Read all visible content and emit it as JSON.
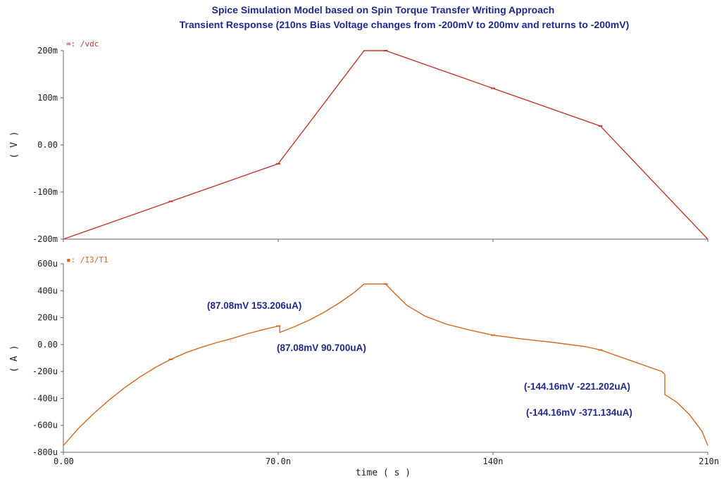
{
  "title": "Spice Simulation Model based on Spin Torque Transfer Writing Approach",
  "subtitle": "Transient Response (210ns Bias Voltage changes from -200mV to 200mv and returns to -200mV)",
  "colors": {
    "title": "#1f2a8c",
    "vdc": "#c0392b",
    "current": "#d2691e",
    "axis": "#555555"
  },
  "xaxis": {
    "label": "time ( s )",
    "ticks": [
      {
        "value": 0,
        "label": "0.00"
      },
      {
        "value": 70,
        "label": "70.0n"
      },
      {
        "value": 140,
        "label": "140n"
      },
      {
        "value": 210,
        "label": "210n"
      }
    ],
    "range": [
      0,
      210
    ]
  },
  "chart_data": [
    {
      "type": "line",
      "series": [
        {
          "name": "/vdc",
          "x": [
            0,
            35,
            70,
            98,
            105,
            140,
            175,
            210
          ],
          "y": [
            -200,
            -120,
            -40,
            200,
            200,
            120,
            40,
            -200
          ],
          "y_alt": null
        }
      ],
      "x_unit": "ns",
      "ylabel": "( V )",
      "ylim": [
        -200,
        200
      ],
      "yticks": [
        {
          "value": 200,
          "label": "200m"
        },
        {
          "value": 100,
          "label": "100m"
        },
        {
          "value": 0,
          "label": "0.00"
        },
        {
          "value": -100,
          "label": "-100m"
        },
        {
          "value": -200,
          "label": "-200m"
        }
      ],
      "series_label": "=: /vdc"
    },
    {
      "type": "line",
      "series": [
        {
          "name": "/I3/T1",
          "x": [
            0,
            5,
            10,
            15,
            20,
            25,
            30,
            35,
            40,
            45,
            50,
            55,
            60,
            65,
            70.5,
            70.5,
            75,
            80,
            85,
            90,
            95,
            98,
            105,
            108,
            112,
            118,
            125,
            132,
            140,
            150,
            160,
            170,
            175,
            180,
            185,
            190,
            195,
            196,
            196,
            200,
            204,
            208,
            210
          ],
          "y": [
            -750,
            -620,
            -510,
            -410,
            -320,
            -240,
            -170,
            -110,
            -60,
            -20,
            15,
            45,
            80,
            110,
            140,
            90,
            130,
            180,
            240,
            310,
            390,
            450,
            450,
            380,
            290,
            210,
            150,
            110,
            70,
            40,
            15,
            -15,
            -40,
            -80,
            -120,
            -160,
            -200,
            -221,
            -371,
            -430,
            -520,
            -640,
            -750
          ]
        }
      ],
      "x_unit": "ns",
      "ylabel": "( A )",
      "ylim": [
        -800,
        600
      ],
      "yticks": [
        {
          "value": 600,
          "label": "600u"
        },
        {
          "value": 400,
          "label": "400u"
        },
        {
          "value": 200,
          "label": "200u"
        },
        {
          "value": 0,
          "label": "0.00"
        },
        {
          "value": -200,
          "label": "-200u"
        },
        {
          "value": -400,
          "label": "-400u"
        },
        {
          "value": -600,
          "label": "-600u"
        },
        {
          "value": -800,
          "label": "-800u"
        }
      ],
      "series_label": "▪: /I3/T1",
      "annotations": [
        {
          "text": "(87.08mV 153.206uA)"
        },
        {
          "text": "(87.08mV 90.700uA)"
        },
        {
          "text": "(-144.16mV -221.202uA)"
        },
        {
          "text": "(-144.16mV -371.134uA)"
        }
      ]
    }
  ]
}
